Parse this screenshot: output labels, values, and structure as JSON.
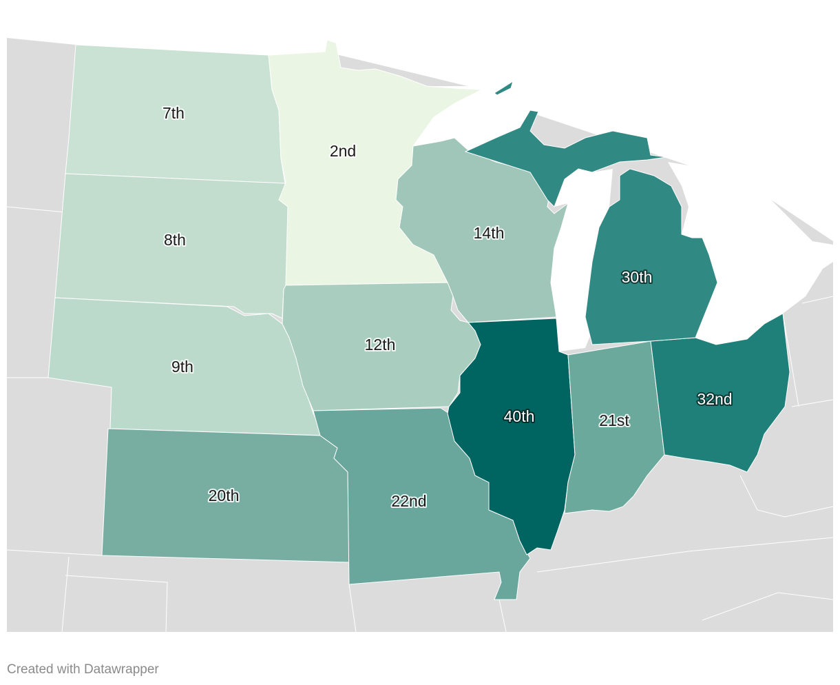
{
  "regions": [
    {
      "label": "7th",
      "color": "#c9e2d3"
    },
    {
      "label": "8th",
      "color": "#c2ddcd"
    },
    {
      "label": "9th",
      "color": "#bcdacb"
    },
    {
      "label": "20th",
      "color": "#78ada2"
    },
    {
      "label": "2nd",
      "color": "#eaf5e4"
    },
    {
      "label": "14th",
      "color": "#9fc6b8"
    },
    {
      "label": "12th",
      "color": "#a9cdbe"
    },
    {
      "label": "40th",
      "color": "#006560"
    },
    {
      "label": "22nd",
      "color": "#69a69b"
    },
    {
      "label": "21st",
      "color": "#6ba99c"
    },
    {
      "label": "32nd",
      "color": "#1e8079"
    },
    {
      "label": "30th",
      "color": "#318983"
    }
  ],
  "footer": "Created with Datawrapper"
}
